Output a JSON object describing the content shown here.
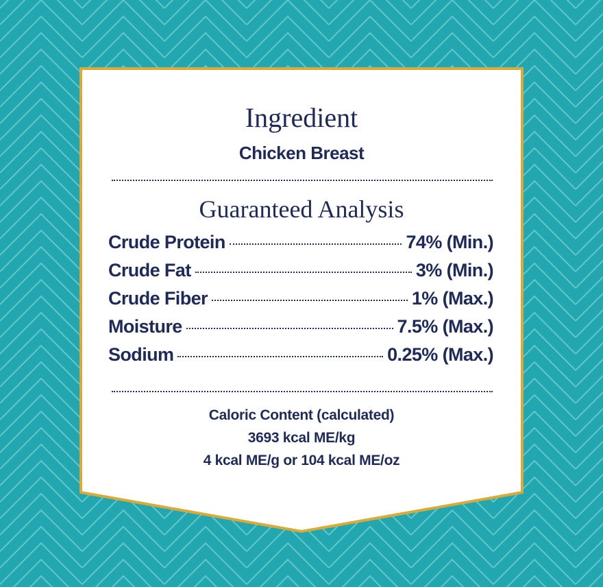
{
  "ingredient": {
    "title": "Ingredient",
    "name": "Chicken Breast"
  },
  "analysis": {
    "title": "Guaranteed Analysis",
    "rows": [
      {
        "name": "Crude Protein",
        "value": "74% (Min.)"
      },
      {
        "name": "Crude Fat",
        "value": "3% (Min.)"
      },
      {
        "name": "Crude Fiber",
        "value": "1% (Max.)"
      },
      {
        "name": "Moisture",
        "value": "7.5% (Max.)"
      },
      {
        "name": "Sodium",
        "value": "0.25% (Max.)"
      }
    ]
  },
  "caloric": {
    "lines": [
      "Caloric Content (calculated)",
      "3693 kcal ME/kg",
      "4 kcal ME/g or 104 kcal ME/oz"
    ]
  }
}
